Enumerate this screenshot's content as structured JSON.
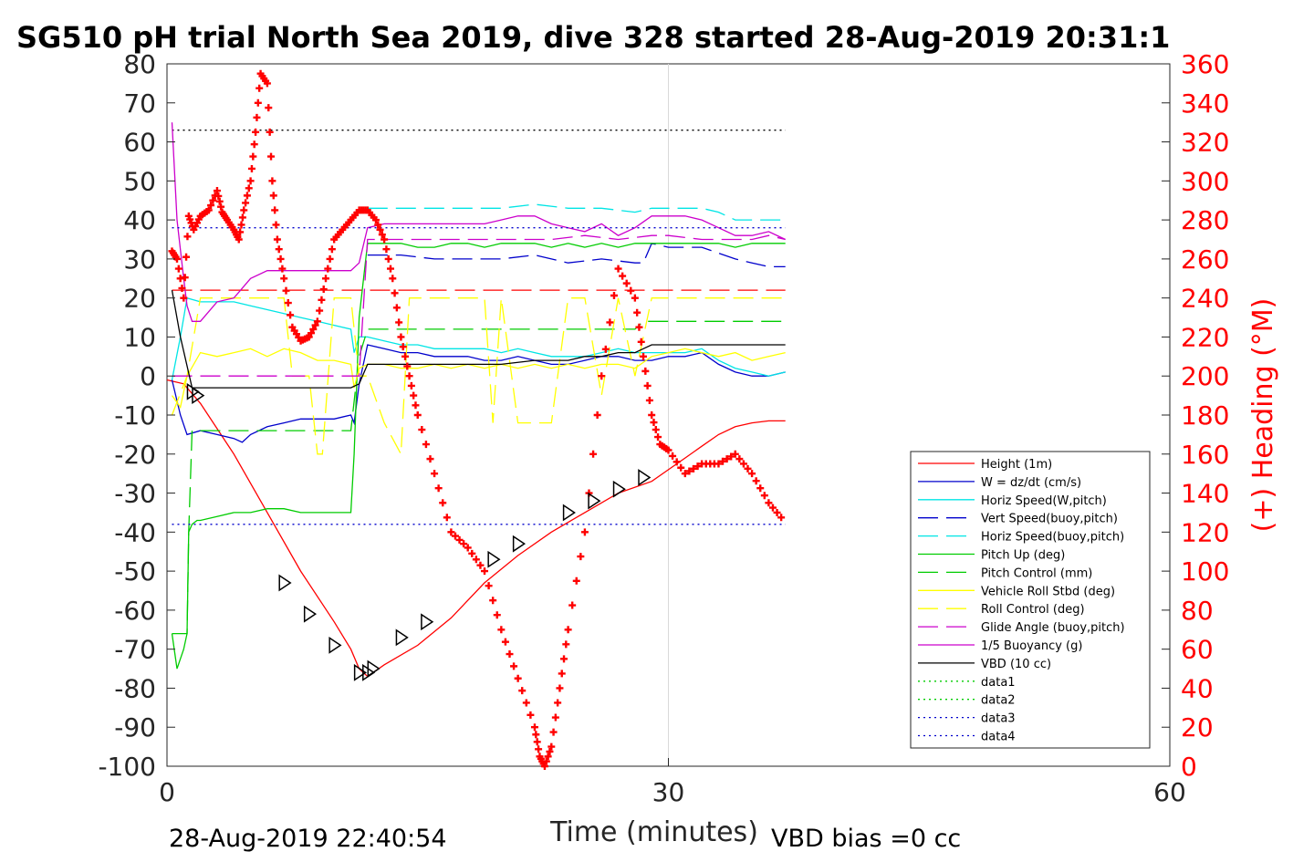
{
  "title": "SG510 pH trial North Sea 2019, dive 328 started 28-Aug-2019 20:31:1",
  "footer": {
    "timestamp": "28-Aug-2019 22:40:54",
    "vbd_bias": "VBD bias =0 cc"
  },
  "chart_data": {
    "type": "line",
    "xlabel": "Time (minutes)",
    "ylabel_right": "(+) Heading (°M)",
    "xlim": [
      0,
      60
    ],
    "ylim": [
      -100,
      80
    ],
    "ylim_right": [
      0,
      360
    ],
    "xticks": [
      "0",
      "30",
      "60"
    ],
    "yticks": [
      "80",
      "70",
      "60",
      "50",
      "40",
      "30",
      "20",
      "10",
      "0",
      "-10",
      "-20",
      "-30",
      "-40",
      "-50",
      "-60",
      "-70",
      "-80",
      "-90",
      "-100"
    ],
    "yticks_right": [
      "360",
      "340",
      "320",
      "300",
      "280",
      "260",
      "240",
      "220",
      "200",
      "180",
      "160",
      "140",
      "120",
      "100",
      "80",
      "60",
      "40",
      "20",
      "0"
    ],
    "grid": "vertical at 30",
    "legend_position": "lower-right",
    "series": [
      {
        "name": "Height (1m)",
        "color": "#ff0000",
        "style": "solid",
        "x": [
          0,
          1,
          2,
          4,
          6,
          8,
          10,
          11,
          11.5,
          12,
          13,
          15,
          17,
          19,
          21,
          23,
          25,
          27,
          29,
          30,
          31,
          32,
          33,
          34,
          35,
          36,
          37
        ],
        "y": [
          -1,
          -2,
          -7,
          -20,
          -35,
          -50,
          -63,
          -70,
          -75,
          -77,
          -74,
          -69,
          -62,
          -53,
          -46,
          -40,
          -35,
          -30,
          -27,
          -24,
          -21,
          -18,
          -15,
          -13,
          -12,
          -11.5,
          -11.5
        ]
      },
      {
        "name": "W = dz/dt (cm/s)",
        "color": "#0000cc",
        "style": "solid",
        "x": [
          0.3,
          0.8,
          1.2,
          2,
          3,
          4,
          4.5,
          5,
          6,
          7,
          8,
          9,
          10,
          11,
          11.2,
          11.5,
          12,
          13,
          14,
          15,
          16,
          17,
          18,
          19,
          20,
          21,
          22,
          23,
          24,
          25,
          26,
          27,
          28,
          29,
          30,
          31,
          32,
          33,
          34,
          35,
          36,
          37
        ],
        "y": [
          -1,
          -10,
          -15,
          -14,
          -15,
          -16,
          -17,
          -15,
          -13,
          -12,
          -11,
          -11,
          -11,
          -10,
          -12,
          -2,
          8,
          7,
          6,
          6,
          5,
          5,
          5,
          4,
          4,
          5,
          4,
          3,
          3,
          4,
          5,
          5,
          4,
          4,
          5,
          5,
          6,
          3,
          1,
          0,
          0,
          1
        ]
      },
      {
        "name": "Horiz Speed(W,pitch)",
        "color": "#00e5e5",
        "style": "solid",
        "x": [
          0.3,
          0.8,
          1.2,
          2,
          3,
          4,
          5,
          6,
          7,
          8,
          9,
          10,
          11,
          11.2,
          11.5,
          12,
          13,
          14,
          15,
          16,
          17,
          18,
          19,
          20,
          21,
          22,
          23,
          24,
          25,
          26,
          27,
          28,
          29,
          30,
          31,
          32,
          33,
          34,
          35,
          36,
          37
        ],
        "y": [
          -1,
          10,
          20,
          19,
          19,
          19,
          18,
          17,
          16,
          15,
          14,
          13,
          12,
          6,
          10,
          10,
          9,
          8,
          8,
          7,
          7,
          7,
          7,
          6,
          7,
          6,
          5,
          5,
          5,
          6,
          7,
          6,
          6,
          6,
          6,
          7,
          4,
          2,
          1,
          0,
          1
        ]
      },
      {
        "name": "Vert Speed(buoy,pitch)",
        "color": "#0000cc",
        "style": "dash",
        "x": [
          12,
          14,
          16,
          18,
          20,
          22,
          24,
          26,
          28,
          28.5,
          29,
          30,
          32,
          34,
          35,
          36,
          37
        ],
        "y": [
          31,
          31,
          30,
          30,
          30,
          31,
          29,
          30,
          29,
          29,
          34,
          33,
          33,
          30,
          29,
          28,
          28
        ]
      },
      {
        "name": "Horiz Speed(buoy,pitch)",
        "color": "#00e5e5",
        "style": "dash",
        "x": [
          12,
          14,
          16,
          18,
          20,
          22,
          24,
          26,
          28,
          29,
          30,
          32,
          33,
          34,
          35,
          36,
          37
        ],
        "y": [
          43,
          43,
          43,
          43,
          43,
          44,
          43,
          43,
          42,
          43,
          43,
          43,
          42,
          40,
          40,
          40,
          40
        ]
      },
      {
        "name": "Pitch Up (deg)",
        "color": "#00cc00",
        "style": "solid",
        "x": [
          0.3,
          0.6,
          1,
          1.2,
          1.3,
          1.5,
          1.8,
          2,
          3,
          4,
          5,
          6,
          7,
          8,
          9,
          10,
          11,
          11.2,
          11.5,
          12,
          13,
          14,
          15,
          16,
          17,
          18,
          19,
          20,
          21,
          22,
          23,
          24,
          25,
          26,
          27,
          28,
          29,
          30,
          31,
          32,
          33,
          34,
          35,
          36,
          37
        ],
        "y": [
          -66,
          -75,
          -70,
          -66,
          -40,
          -38,
          -37,
          -37,
          -36,
          -35,
          -35,
          -34,
          -34,
          -35,
          -35,
          -35,
          -35,
          -20,
          15,
          34,
          34,
          34,
          33,
          33,
          34,
          34,
          33,
          34,
          34,
          34,
          33,
          34,
          33,
          34,
          33,
          34,
          34,
          34,
          34,
          34,
          34,
          33,
          34,
          34,
          34
        ]
      },
      {
        "name": "Pitch Control (mm)",
        "color": "#00cc00",
        "style": "dash",
        "x": [
          0.3,
          1.2,
          1.3,
          1.5,
          3,
          6,
          9,
          11,
          11.5,
          12,
          20,
          24,
          28,
          28.5,
          37
        ],
        "y": [
          -66,
          -66,
          -40,
          -14,
          -14,
          -14,
          -14,
          -14,
          5,
          12,
          12,
          12,
          12,
          14,
          14
        ]
      },
      {
        "name": "Vehicle Roll Stbd (deg)",
        "color": "#ffff00",
        "style": "solid",
        "x": [
          0.3,
          0.8,
          1.2,
          2,
          3,
          4,
          5,
          6,
          7,
          8,
          9,
          10,
          11,
          11.2,
          11.5,
          12,
          13,
          14,
          15,
          16,
          17,
          18,
          19,
          20,
          21,
          22,
          23,
          24,
          25,
          26,
          27,
          28,
          29,
          30,
          31,
          32,
          33,
          34,
          35,
          36,
          37
        ],
        "y": [
          -5,
          -8,
          0,
          6,
          5,
          6,
          7,
          5,
          7,
          6,
          4,
          4,
          3,
          -3,
          2,
          3,
          3,
          2,
          2,
          3,
          2,
          3,
          2,
          3,
          2,
          3,
          2,
          3,
          2,
          3,
          3,
          2,
          5,
          6,
          7,
          6,
          5,
          6,
          4,
          5,
          6
        ]
      },
      {
        "name": "Roll Control (deg)",
        "color": "#ffff00",
        "style": "dash",
        "x": [
          0.3,
          1.2,
          2,
          7,
          7.5,
          8,
          8.5,
          9,
          9.3,
          10,
          11,
          11.5,
          12,
          13,
          14,
          14.5,
          15,
          19,
          19.5,
          20,
          21,
          22,
          23,
          24,
          25,
          26,
          27,
          28,
          29,
          31,
          32,
          33,
          34,
          35,
          36,
          37
        ],
        "y": [
          -10,
          0,
          20,
          20,
          0,
          0,
          0,
          -20,
          -20,
          20,
          20,
          0,
          0,
          -12,
          -20,
          20,
          20,
          20,
          -12,
          20,
          -12,
          -12,
          -12,
          20,
          20,
          -5,
          20,
          0,
          20,
          20,
          20,
          20,
          20,
          20,
          20,
          20
        ]
      },
      {
        "name": "Glide Angle (buoy,pitch)",
        "color": "#cc00cc",
        "style": "dash",
        "x": [
          0.3,
          11.5,
          12,
          13,
          15,
          17,
          19,
          21,
          23,
          25,
          27,
          29,
          30,
          32,
          33,
          34,
          35,
          36,
          37
        ],
        "y": [
          0,
          0,
          35,
          35,
          35,
          35,
          35,
          35,
          35,
          36,
          35,
          36,
          36,
          35,
          35,
          35,
          35,
          36,
          35
        ]
      },
      {
        "name": "1/5 Buoyancy (g)",
        "color": "#cc00cc",
        "style": "solid",
        "x": [
          0.3,
          0.6,
          1,
          1.2,
          1.5,
          2,
          3,
          4,
          5,
          6,
          7,
          8,
          9,
          10,
          11,
          11.5,
          12,
          13,
          14,
          15,
          16,
          17,
          18,
          19,
          20,
          21,
          22,
          23,
          24,
          25,
          26,
          27,
          28,
          29,
          30,
          31,
          32,
          33,
          34,
          35,
          36,
          37
        ],
        "y": [
          65,
          40,
          25,
          18,
          14,
          14,
          19,
          20,
          25,
          27,
          27,
          27,
          27,
          27,
          27,
          29,
          38,
          39,
          39,
          39,
          39,
          39,
          39,
          39,
          40,
          41,
          41,
          39,
          38,
          37,
          39,
          36,
          38,
          41,
          41,
          41,
          40,
          38,
          36,
          36,
          37,
          35
        ]
      },
      {
        "name": "VBD (10 cc)",
        "color": "#000000",
        "style": "solid",
        "x": [
          0.3,
          0.8,
          1.5,
          4,
          8,
          11,
          11.5,
          12,
          14,
          16,
          18,
          20,
          22,
          24,
          25,
          26,
          27,
          28,
          28.5,
          29,
          31,
          33,
          35,
          37
        ],
        "y": [
          22,
          10,
          -3,
          -3,
          -3,
          -3,
          -2,
          3,
          3,
          3,
          3,
          3,
          4,
          4,
          5,
          5,
          6,
          6,
          7,
          8,
          8,
          8,
          8,
          8
        ]
      },
      {
        "name": "data1",
        "color": "#00cc00",
        "style": "dot",
        "x": [],
        "y": []
      },
      {
        "name": "data2",
        "color": "#00cc00",
        "style": "dot",
        "x": [],
        "y": []
      },
      {
        "name": "data3",
        "color": "#0000cc",
        "style": "dot",
        "x": [
          0.3,
          37
        ],
        "y": [
          38,
          38
        ]
      },
      {
        "name": "data4",
        "color": "#0000cc",
        "style": "dot",
        "x": [
          0.3,
          37
        ],
        "y": [
          -38,
          -38
        ]
      }
    ],
    "extra_lines": [
      {
        "color": "#ff0000",
        "style": "dash",
        "x": [
          0.3,
          37
        ],
        "y": [
          22,
          22
        ]
      },
      {
        "color": "#000000",
        "style": "dot",
        "x": [
          0.3,
          37
        ],
        "y": [
          63,
          63
        ]
      }
    ],
    "heading": {
      "name": "(+) Heading (°M)",
      "color": "#ff0000",
      "axis": "right",
      "x": [
        0.3,
        0.6,
        1,
        1.3,
        1.6,
        2,
        2.5,
        3,
        3.3,
        3.6,
        4,
        4.3,
        4.6,
        5,
        5.3,
        5.6,
        6,
        6.3,
        6.6,
        7,
        7.5,
        8,
        8.5,
        9,
        9.5,
        10,
        10.5,
        11,
        11.5,
        12,
        12.5,
        13,
        13.5,
        14,
        14.5,
        15,
        16,
        17,
        18,
        19,
        20,
        21,
        22,
        22.3,
        22.6,
        23,
        23.5,
        24,
        25,
        26,
        27,
        28,
        28.5,
        29,
        29.5,
        30,
        31,
        32,
        33,
        34,
        35,
        36,
        37
      ],
      "y": [
        264,
        260,
        240,
        282,
        275,
        282,
        285,
        295,
        284,
        280,
        275,
        270,
        285,
        300,
        325,
        355,
        350,
        300,
        270,
        250,
        225,
        218,
        220,
        228,
        250,
        270,
        275,
        280,
        285,
        285,
        280,
        270,
        250,
        220,
        200,
        180,
        150,
        120,
        112,
        100,
        70,
        45,
        20,
        5,
        0,
        10,
        40,
        70,
        120,
        200,
        255,
        240,
        210,
        180,
        165,
        162,
        150,
        155,
        155,
        160,
        150,
        135,
        125
      ]
    },
    "markers": {
      "shape": "triangle",
      "points": [
        [
          1.5,
          -4
        ],
        [
          1.8,
          -5
        ],
        [
          7,
          -53
        ],
        [
          8.5,
          -61
        ],
        [
          10,
          -69
        ],
        [
          11.5,
          -76
        ],
        [
          12,
          -76
        ],
        [
          12.3,
          -75
        ],
        [
          14,
          -67
        ],
        [
          15.5,
          -63
        ],
        [
          19.5,
          -47
        ],
        [
          21,
          -43
        ],
        [
          24,
          -35
        ],
        [
          25.5,
          -32
        ],
        [
          27,
          -29
        ],
        [
          28.5,
          -26
        ]
      ]
    }
  },
  "colors": {
    "heading": "#ff0000",
    "axis": "#262626"
  }
}
